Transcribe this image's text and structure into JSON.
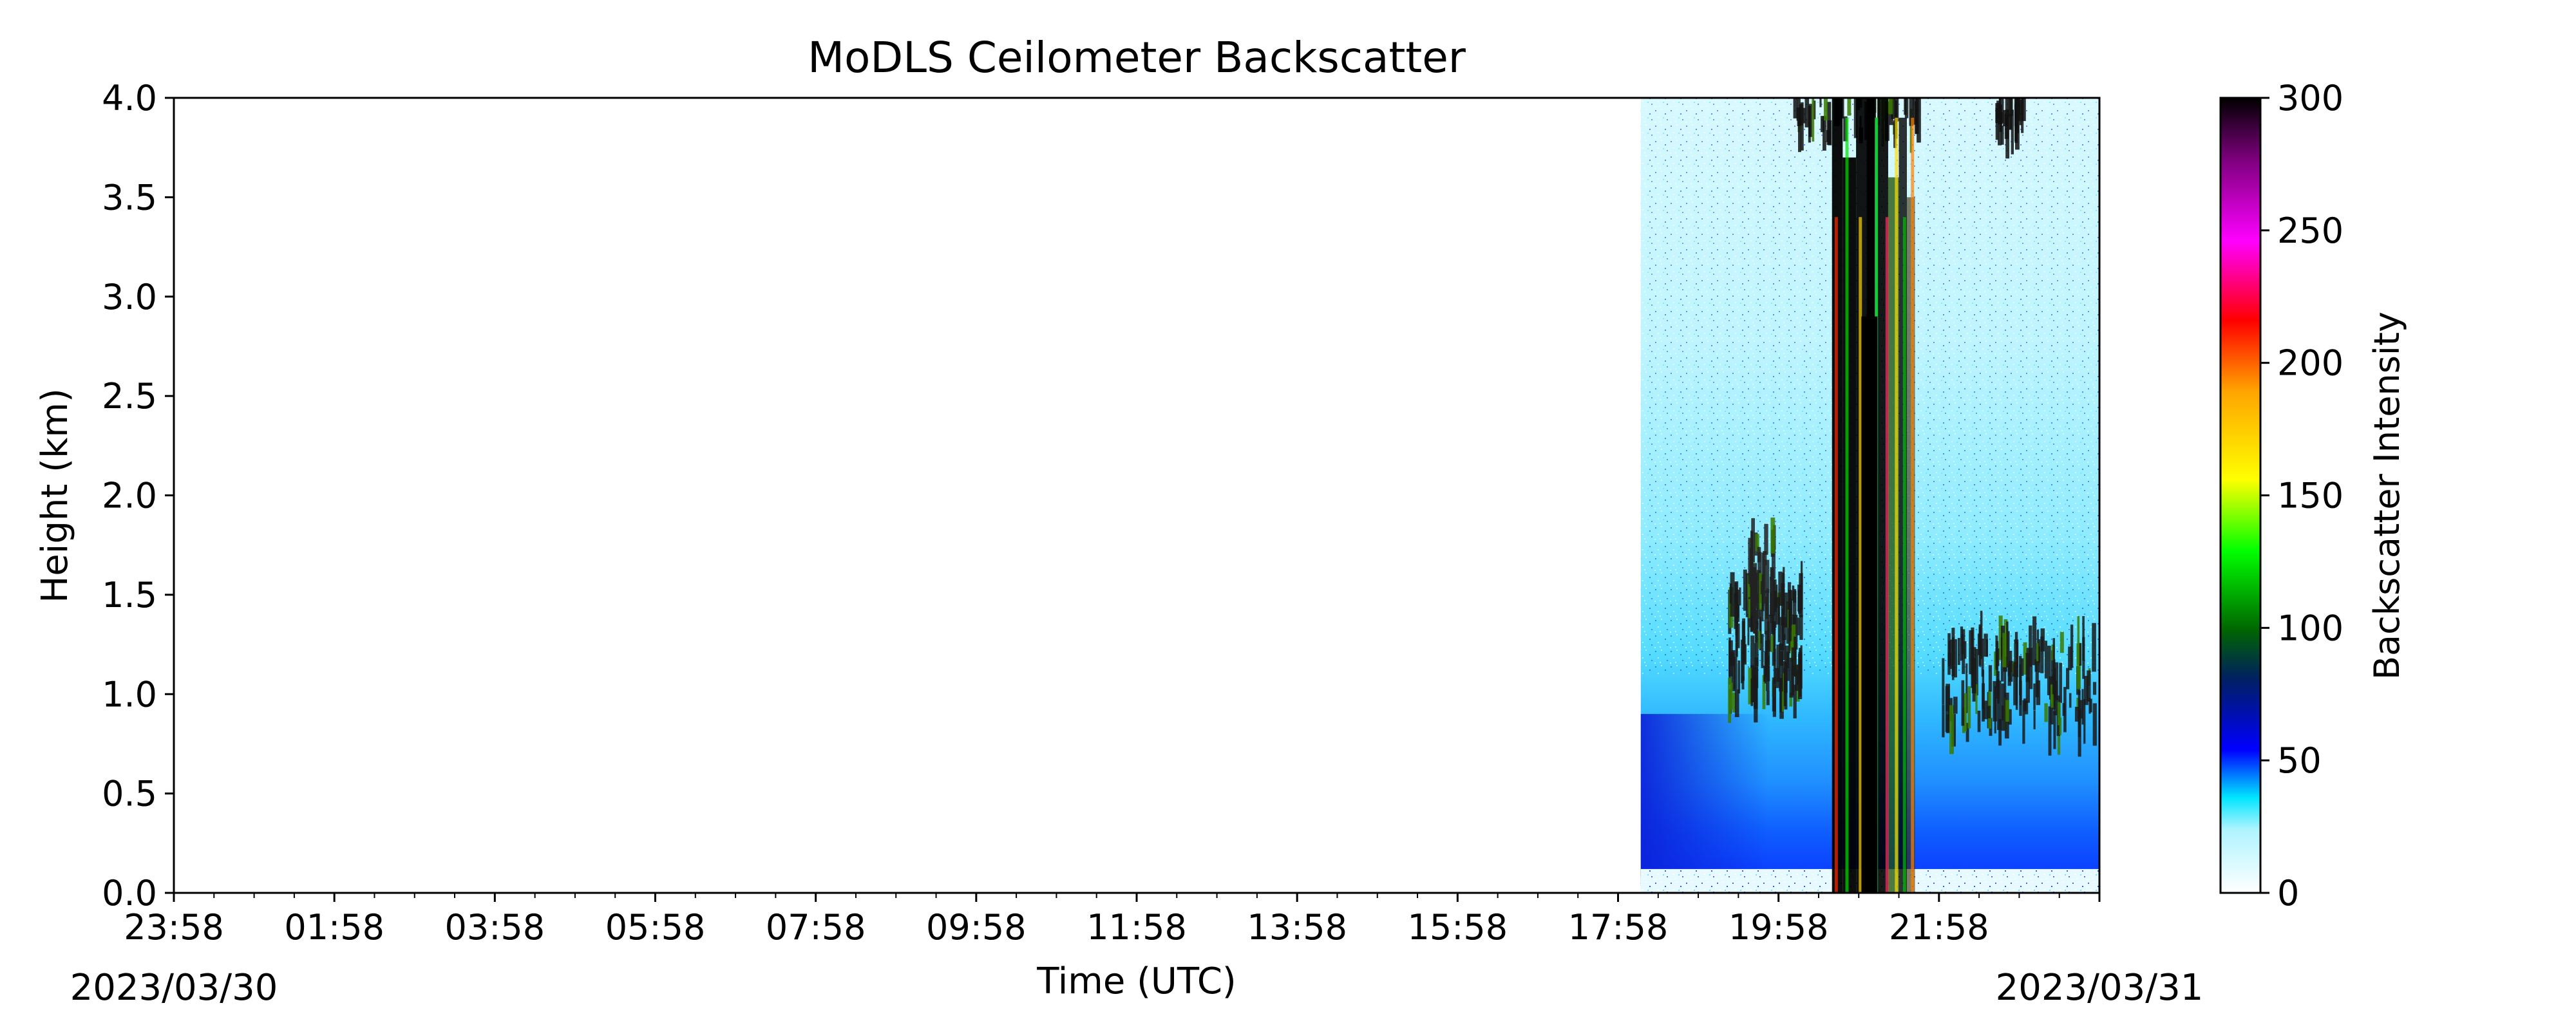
{
  "chart_data": {
    "type": "heatmap",
    "title": "MoDLS Ceilometer Backscatter",
    "xlabel": "Time (UTC)",
    "ylabel": "Height (km)",
    "ylim": [
      0.0,
      4.0
    ],
    "y_ticks": [
      "0.0",
      "0.5",
      "1.0",
      "1.5",
      "2.0",
      "2.5",
      "3.0",
      "3.5",
      "4.0"
    ],
    "x_ticks": [
      "23:58",
      "01:58",
      "03:58",
      "05:58",
      "07:58",
      "09:58",
      "11:58",
      "13:58",
      "15:58",
      "17:58",
      "19:58",
      "21:58"
    ],
    "x_start_date": "2023/03/30",
    "x_end_date": "2023/03/31",
    "data_start": "18:15",
    "data_end": "23:58",
    "colorbar": {
      "label": "Backscatter Intensity",
      "range": [
        0,
        300
      ],
      "ticks": [
        "0",
        "50",
        "100",
        "150",
        "200",
        "250",
        "300"
      ],
      "colors": [
        "#ffffff",
        "#00e5ff",
        "#0000ff",
        "#006400",
        "#00ff00",
        "#ffff00",
        "#ffa500",
        "#ff0000",
        "#ff00ff",
        "#000000"
      ]
    },
    "grid": false
  }
}
